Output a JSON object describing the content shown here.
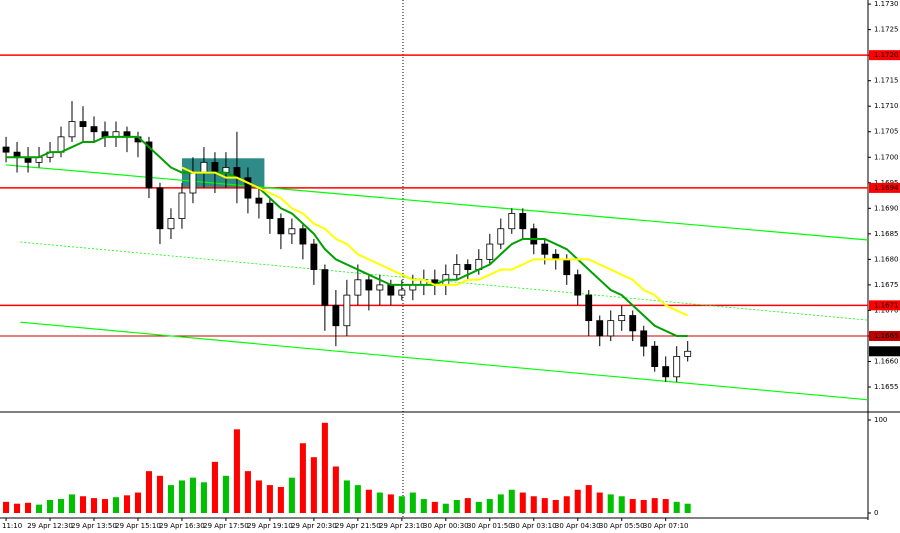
{
  "chart_data": {
    "type": "candlestick",
    "categories": [
      "11:10",
      null,
      null,
      null,
      "29 Apr 12:30",
      null,
      null,
      null,
      "29 Apr 13:50",
      null,
      null,
      null,
      "29 Apr 15:10",
      null,
      null,
      null,
      "29 Apr 16:30",
      null,
      null,
      null,
      "29 Apr 17:50",
      null,
      null,
      null,
      "29 Apr 19:10",
      null,
      null,
      null,
      "29 Apr 20:30",
      null,
      null,
      null,
      "29 Apr 21:50",
      null,
      null,
      null,
      "29 Apr 23:10",
      null,
      null,
      null,
      "30 Apr 00:30",
      null,
      null,
      null,
      "30 Apr 01:50",
      null,
      null,
      null,
      "30 Apr 03:10",
      null,
      null,
      null,
      "30 Apr 04:30",
      null,
      null,
      null,
      "30 Apr 05:50",
      null,
      null,
      null,
      "30 Apr 07:10",
      null,
      null
    ],
    "open": [
      1.1702,
      1.1701,
      1.17,
      1.1699,
      1.17,
      1.1701,
      1.1704,
      1.1707,
      1.1706,
      1.1705,
      1.1704,
      1.1705,
      1.1704,
      1.1703,
      1.1694,
      1.1686,
      1.1688,
      1.1693,
      1.1697,
      1.1699,
      1.1697,
      1.1698,
      1.1696,
      1.1692,
      1.1691,
      1.1688,
      1.1685,
      1.1686,
      1.1683,
      1.1678,
      1.1671,
      1.1667,
      1.1673,
      1.1676,
      1.1674,
      1.1675,
      1.1673,
      1.1674,
      1.1675,
      1.1676,
      1.1675,
      1.1677,
      1.1679,
      1.1678,
      1.168,
      1.1683,
      1.1686,
      1.1689,
      1.1686,
      1.1683,
      1.1681,
      1.168,
      1.1677,
      1.1673,
      1.1668,
      1.1665,
      1.1668,
      1.1669,
      1.1666,
      1.1663,
      1.1659,
      1.1657,
      1.1661
    ],
    "high": [
      1.1704,
      1.1703,
      1.1702,
      1.1702,
      1.1703,
      1.1706,
      1.1711,
      1.171,
      1.1708,
      1.1707,
      1.1707,
      1.1706,
      1.1705,
      1.1704,
      1.1695,
      1.169,
      1.1695,
      1.17,
      1.1702,
      1.1701,
      1.1701,
      1.1705,
      1.1698,
      1.1694,
      1.1692,
      1.1689,
      1.1688,
      1.1687,
      1.1684,
      1.1679,
      1.1674,
      1.1676,
      1.1679,
      1.1677,
      1.1677,
      1.1676,
      1.1676,
      1.1677,
      1.1678,
      1.1678,
      1.1679,
      1.1681,
      1.168,
      1.1682,
      1.1685,
      1.1688,
      1.169,
      1.169,
      1.1687,
      1.1684,
      1.1682,
      1.1681,
      1.1678,
      1.1674,
      1.1669,
      1.167,
      1.1671,
      1.167,
      1.1667,
      1.1664,
      1.1661,
      1.1663,
      1.1664
    ],
    "low": [
      1.1699,
      1.1697,
      1.1697,
      1.1698,
      1.1699,
      1.17,
      1.1703,
      1.1703,
      1.1703,
      1.1702,
      1.1702,
      1.1701,
      1.17,
      1.1692,
      1.1683,
      1.1684,
      1.1686,
      1.1691,
      1.1694,
      1.1693,
      1.1694,
      1.1691,
      1.1689,
      1.1688,
      1.1685,
      1.1682,
      1.1683,
      1.168,
      1.1675,
      1.1666,
      1.1663,
      1.1665,
      1.1671,
      1.167,
      1.1671,
      1.1671,
      1.1672,
      1.1672,
      1.1673,
      1.1673,
      1.1673,
      1.1676,
      1.1676,
      1.1677,
      1.1679,
      1.1682,
      1.1685,
      1.1684,
      1.1681,
      1.1679,
      1.1678,
      1.1675,
      1.1671,
      1.1665,
      1.1663,
      1.1664,
      1.1666,
      1.1664,
      1.1661,
      1.1658,
      1.1656,
      1.1656,
      1.166
    ],
    "close": [
      1.1701,
      1.17,
      1.1699,
      1.17,
      1.1701,
      1.1704,
      1.1707,
      1.1706,
      1.1705,
      1.1704,
      1.1705,
      1.1704,
      1.1703,
      1.1694,
      1.1686,
      1.1688,
      1.1693,
      1.1697,
      1.1699,
      1.1697,
      1.1698,
      1.1696,
      1.1692,
      1.1691,
      1.1688,
      1.1685,
      1.1686,
      1.1683,
      1.1678,
      1.1671,
      1.1667,
      1.1673,
      1.1676,
      1.1674,
      1.1675,
      1.1673,
      1.1674,
      1.1675,
      1.1676,
      1.1675,
      1.1677,
      1.1679,
      1.1678,
      1.168,
      1.1683,
      1.1686,
      1.1689,
      1.1686,
      1.1683,
      1.1681,
      1.168,
      1.1677,
      1.1673,
      1.1668,
      1.1665,
      1.1668,
      1.1669,
      1.1666,
      1.1663,
      1.1659,
      1.1657,
      1.1661,
      1.1662
    ],
    "up_color": "#ffffff",
    "down_color": "#000000",
    "series": [
      {
        "color": "#00a000",
        "values": [
          1.17,
          1.17,
          1.17,
          1.17,
          1.1701,
          1.1701,
          1.1702,
          1.1703,
          1.1703,
          1.1704,
          1.1704,
          1.1704,
          1.1704,
          1.1702,
          1.17,
          1.1698,
          1.1697,
          1.1697,
          1.1697,
          1.1697,
          1.1697,
          1.1696,
          1.1695,
          1.1694,
          1.1692,
          1.169,
          1.1689,
          1.1687,
          1.1685,
          1.1682,
          1.168,
          1.1679,
          1.1678,
          1.1677,
          1.1676,
          1.1675,
          1.1675,
          1.1675,
          1.1675,
          1.1675,
          1.1676,
          1.1676,
          1.1677,
          1.1678,
          1.1679,
          1.1681,
          1.1683,
          1.1684,
          1.1684,
          1.1684,
          1.1683,
          1.1682,
          1.168,
          1.1678,
          1.1676,
          1.1674,
          1.1673,
          1.1671,
          1.1669,
          1.1667,
          1.1666,
          1.1665,
          1.1665
        ]
      },
      {
        "color": "#ffff00",
        "values": [
          null,
          null,
          null,
          null,
          null,
          null,
          null,
          null,
          null,
          null,
          null,
          null,
          null,
          null,
          null,
          null,
          1.1698,
          1.1697,
          1.1697,
          1.1697,
          1.1696,
          1.1696,
          1.1695,
          1.1694,
          1.1693,
          1.1692,
          1.169,
          1.1689,
          1.1687,
          1.1686,
          1.1684,
          1.1683,
          1.1681,
          1.168,
          1.1679,
          1.1678,
          1.1677,
          1.1676,
          1.1676,
          1.1675,
          1.1675,
          1.1675,
          1.1676,
          1.1676,
          1.1677,
          1.1678,
          1.1678,
          1.1679,
          1.168,
          1.168,
          1.168,
          1.168,
          1.168,
          1.168,
          1.1679,
          1.1678,
          1.1677,
          1.1676,
          1.1674,
          1.1673,
          1.1671,
          1.167,
          1.1669
        ]
      }
    ],
    "xlim": [
      -0.55,
      78.4
    ],
    "ylim": [
      1.16505,
      1.17308
    ],
    "yticks": [
      {
        "value": 1.1655,
        "label": "1.1655"
      },
      {
        "value": 1.166,
        "label": "1.1660"
      },
      {
        "value": 1.1665,
        "label": "1.1665"
      },
      {
        "value": 1.167,
        "label": "1.1670"
      },
      {
        "value": 1.1675,
        "label": "1.1675"
      },
      {
        "value": 1.168,
        "label": "1.1680"
      },
      {
        "value": 1.1685,
        "label": "1.1685"
      },
      {
        "value": 1.169,
        "label": "1.1690"
      },
      {
        "value": 1.1695,
        "label": "1.1695"
      },
      {
        "value": 1.17,
        "label": "1.1700"
      },
      {
        "value": 1.1705,
        "label": "1.1705"
      },
      {
        "value": 1.171,
        "label": "1.1710"
      },
      {
        "value": 1.1715,
        "label": "1.1715"
      },
      {
        "value": 1.172,
        "label": "1.1720"
      },
      {
        "value": 1.1725,
        "label": "1.1725"
      },
      {
        "value": 1.173,
        "label": "1.1730"
      }
    ],
    "levels": [
      {
        "value": 1.172,
        "label": "1.1720",
        "color": "#ff0000"
      },
      {
        "value": 1.1694,
        "label": "1.1694",
        "color": "#ff0000"
      },
      {
        "value": 1.1671,
        "label": "1.1671",
        "color": "#ff0000"
      },
      {
        "value": 1.1665,
        "label": "1.1665",
        "color": "#c00000"
      }
    ],
    "last_price": {
      "value": 1.1662,
      "label": "1.1662"
    },
    "trendlines": [
      {
        "x": [
          0,
          78.4
        ],
        "y": [
          1.16985,
          1.16838
        ],
        "color": "#00ff00",
        "dashed": false
      },
      {
        "x": [
          1.3,
          78.4
        ],
        "y": [
          1.16677,
          1.16525
        ],
        "color": "#00ff00",
        "dashed": false
      },
      {
        "x": [
          1.3,
          78.4
        ],
        "y": [
          1.16834,
          1.16681
        ],
        "color": "#00ff00",
        "dashed": true
      }
    ],
    "zone": {
      "x": [
        16,
        23.5
      ],
      "y": [
        1.1694,
        1.16998
      ],
      "color": "#2e8b87"
    },
    "volume": {
      "values": [
        12,
        10,
        11,
        9,
        14,
        15,
        20,
        18,
        16,
        15,
        17,
        19,
        22,
        45,
        40,
        30,
        35,
        38,
        33,
        55,
        40,
        90,
        45,
        35,
        30,
        28,
        38,
        75,
        60,
        97,
        50,
        35,
        30,
        25,
        22,
        20,
        18,
        22,
        15,
        12,
        10,
        14,
        16,
        12,
        15,
        20,
        25,
        22,
        18,
        16,
        14,
        18,
        25,
        30,
        22,
        20,
        18,
        15,
        14,
        16,
        15,
        12,
        10
      ],
      "ylim": [
        0,
        100
      ],
      "yticks": [
        0,
        100
      ],
      "up_color": "#00c000",
      "down_color": "#ff0000"
    }
  }
}
